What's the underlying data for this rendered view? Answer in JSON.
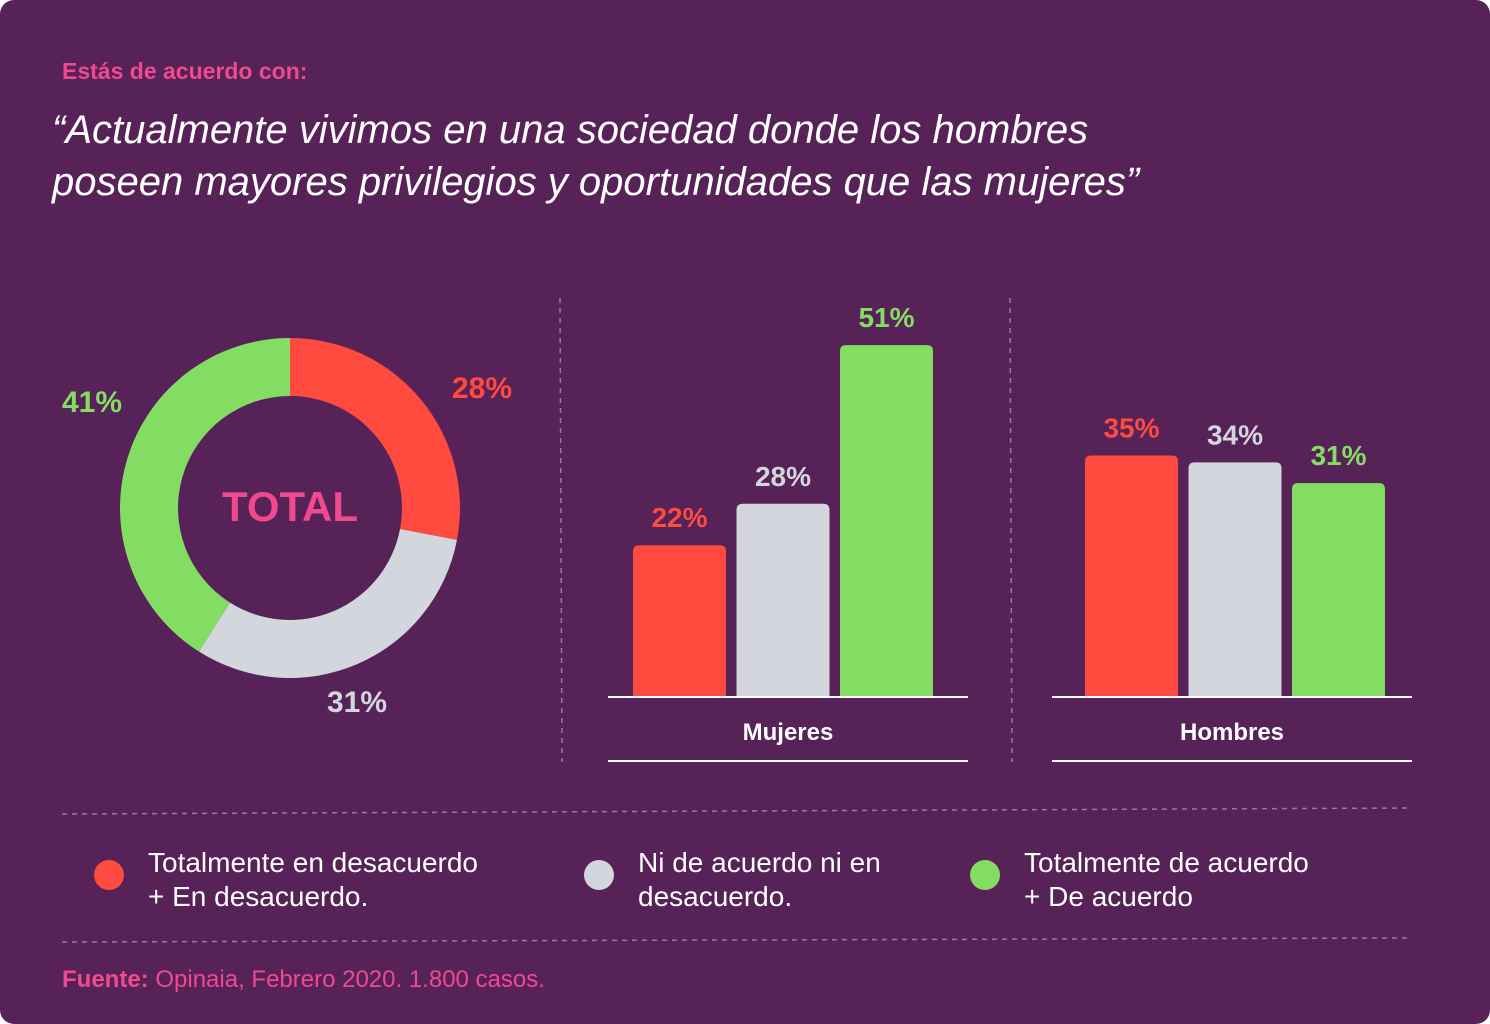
{
  "eyebrow": "Estás de acuerdo con:",
  "quote": {
    "line1": "“Actualmente vivimos en una sociedad donde los hombres",
    "line2": "poseen mayores privilegios y oportunidades que las mujeres”"
  },
  "colors": {
    "background": "#562257",
    "disagree": "#ff4a40",
    "neutral": "#d3d6dc",
    "agree": "#84dd63",
    "accent": "#f0498f"
  },
  "legend": [
    {
      "key": "disagree",
      "line1": "Totalmente en desacuerdo",
      "line2": "+ En desacuerdo."
    },
    {
      "key": "neutral",
      "line1": "Ni de acuerdo ni en",
      "line2": "desacuerdo."
    },
    {
      "key": "agree",
      "line1": "Totalmente de acuerdo",
      "line2": "+ De acuerdo"
    }
  ],
  "source": {
    "label": "Fuente:",
    "text": "Opinaia, Febrero 2020. 1.800 casos."
  },
  "chart_data": [
    {
      "type": "pie",
      "center_label": "TOTAL",
      "series_keys": [
        "disagree",
        "neutral",
        "agree"
      ],
      "values": [
        28,
        31,
        41
      ],
      "value_labels": [
        "28%",
        "31%",
        "41%"
      ]
    },
    {
      "type": "bar",
      "category": "Mujeres",
      "series_keys": [
        "disagree",
        "neutral",
        "agree"
      ],
      "values": [
        22,
        28,
        51
      ],
      "value_labels": [
        "22%",
        "28%",
        "51%"
      ]
    },
    {
      "type": "bar",
      "category": "Hombres",
      "series_keys": [
        "disagree",
        "neutral",
        "agree"
      ],
      "values": [
        35,
        34,
        31
      ],
      "value_labels": [
        "35%",
        "34%",
        "31%"
      ]
    }
  ]
}
